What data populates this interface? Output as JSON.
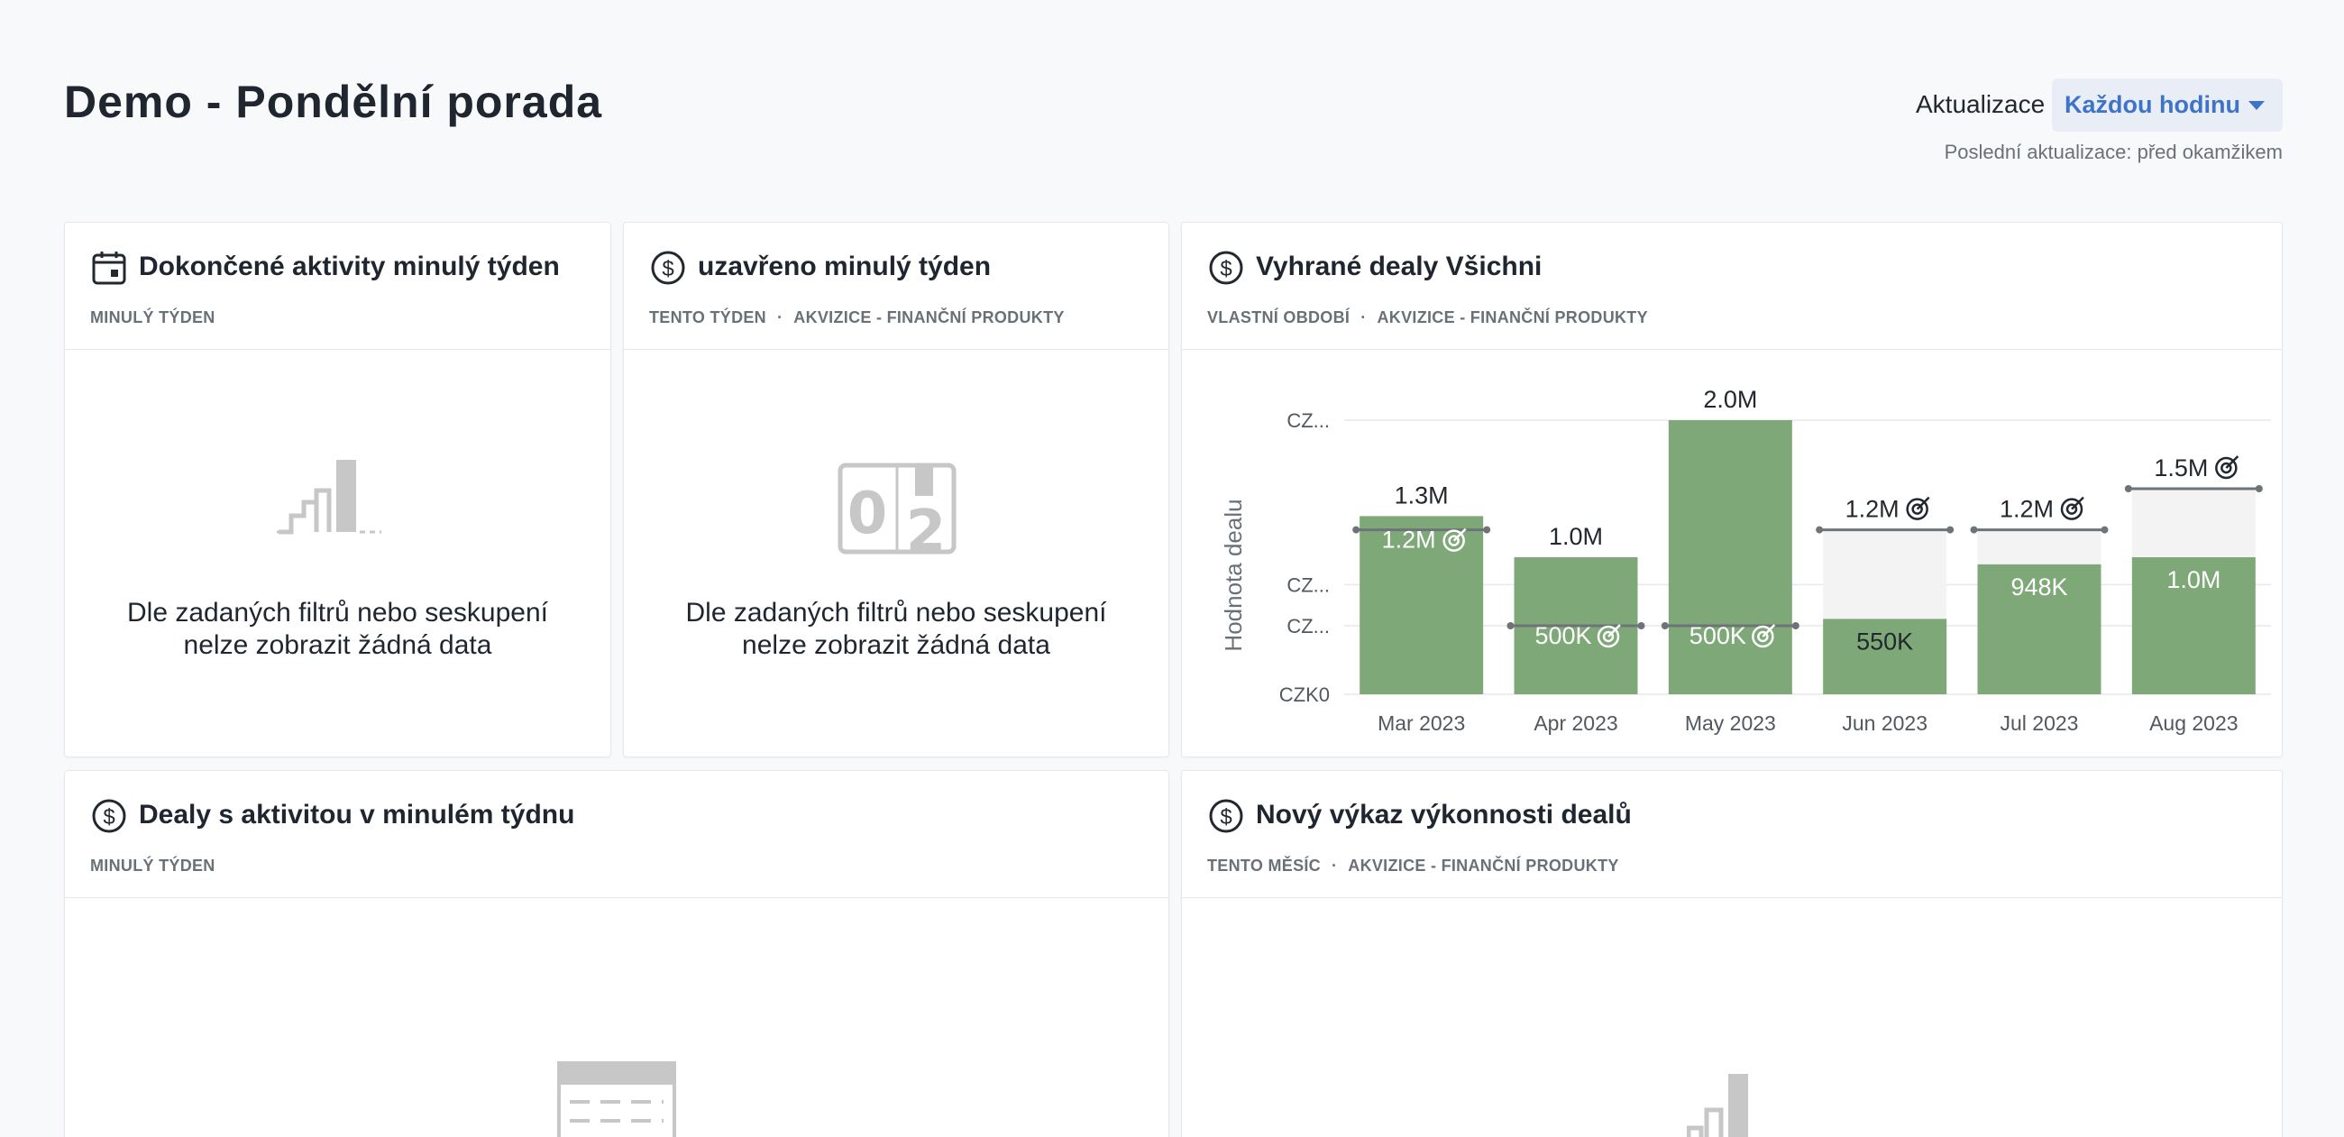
{
  "header": {
    "title": "Demo - Pondělní porada",
    "refresh_label": "Aktualizace",
    "refresh_value": "Každou hodinu",
    "last_update": "Poslední aktualizace: před okamžikem"
  },
  "cards": [
    {
      "title": "Dokončené aktivity minulý týden",
      "icon": "calendar-icon",
      "subtitle": [
        "MINULÝ TÝDEN"
      ],
      "empty_message_line1": "Dle zadaných filtrů nebo seskupení",
      "empty_message_line2": "nelze zobrazit žádná data"
    },
    {
      "title": "uzavřeno minulý týden",
      "icon": "dollar-icon",
      "subtitle": [
        "TENTO TÝDEN",
        "AKVIZICE - FINANČNÍ PRODUKTY"
      ],
      "empty_message_line1": "Dle zadaných filtrů nebo seskupení",
      "empty_message_line2": "nelze zobrazit žádná data"
    },
    {
      "title": "Vyhrané dealy Všichni",
      "icon": "dollar-icon",
      "subtitle": [
        "VLASTNÍ OBDOBÍ",
        "AKVIZICE - FINANČNÍ PRODUKTY"
      ]
    },
    {
      "title": "Dealy s aktivitou v minulém týdnu",
      "icon": "dollar-icon",
      "subtitle": [
        "MINULÝ TÝDEN"
      ]
    },
    {
      "title": "Nový výkaz výkonnosti dealů",
      "icon": "dollar-icon",
      "subtitle": [
        "TENTO MĚSÍC",
        "AKVIZICE - FINANČNÍ PRODUKTY"
      ]
    }
  ],
  "chart_data": {
    "type": "bar",
    "ylabel": "Hodnota dealu",
    "y_tick_labels": [
      "CZK0",
      "CZ...",
      "CZ...",
      "CZ..."
    ],
    "categories": [
      "Mar 2023",
      "Apr 2023",
      "May 2023",
      "Jun 2023",
      "Jul 2023",
      "Aug 2023"
    ],
    "series": [
      {
        "values": [
          1300000,
          1000000,
          2000000,
          550000,
          948000,
          1000000
        ]
      }
    ],
    "value_labels": [
      "1.3M",
      "1.0M",
      "2.0M",
      "550K",
      "948K",
      "1.0M"
    ],
    "goals": [
      1200000,
      500000,
      500000,
      1200000,
      1200000,
      1500000
    ],
    "goal_labels": [
      "1.2M",
      "500K",
      "500K",
      "1.2M",
      "1.2M",
      "1.5M"
    ],
    "ylim": [
      0,
      2000000
    ],
    "grid": true,
    "colors": {
      "bar": "#7fa878",
      "gap": "#f3f3f3",
      "goal": "#6e7378",
      "grid": "#e8e9eb"
    }
  }
}
